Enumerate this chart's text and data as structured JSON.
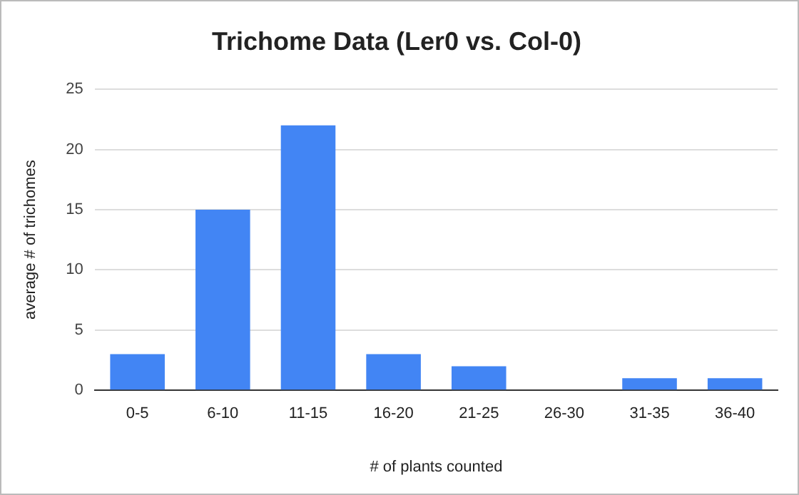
{
  "chart_data": {
    "type": "bar",
    "title": "Trichome Data (Ler0 vs. Col-0)",
    "xlabel": "# of plants counted",
    "ylabel": "average # of trichomes",
    "categories": [
      "0-5",
      "6-10",
      "11-15",
      "16-20",
      "21-25",
      "26-30",
      "31-35",
      "36-40"
    ],
    "values": [
      3,
      15,
      22,
      3,
      2,
      0,
      1,
      1
    ],
    "color": "#4285f4",
    "ylim": [
      0,
      25
    ],
    "yticks": [
      0,
      5,
      10,
      15,
      20,
      25
    ],
    "grid": "y",
    "legend": false
  }
}
